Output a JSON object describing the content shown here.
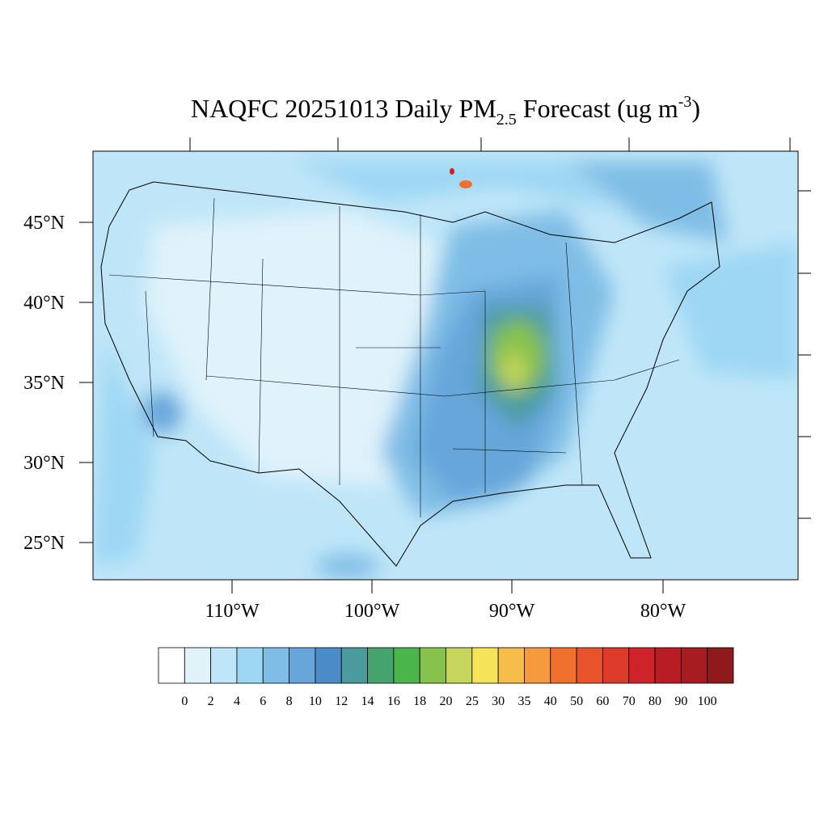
{
  "title": {
    "main": "NAQFC 20251013 Daily PM",
    "sub": "2.5",
    "middle": " Forecast (ug m",
    "sup": "-3",
    "end": ")"
  },
  "lat_labels": [
    "45°N",
    "40°N",
    "35°N",
    "30°N",
    "25°N"
  ],
  "lon_labels": [
    "110°W",
    "100°W",
    "90°W",
    "80°W"
  ],
  "colorbar": {
    "levels": [
      0,
      2,
      4,
      6,
      8,
      10,
      12,
      14,
      16,
      18,
      20,
      25,
      30,
      35,
      40,
      50,
      60,
      70,
      80,
      90,
      100
    ],
    "colors": [
      "#ffffff",
      "#e0f3fb",
      "#bfe6f8",
      "#9dd7f4",
      "#7fbde6",
      "#66a6da",
      "#4a8cc8",
      "#4a9b9e",
      "#45a46d",
      "#4bb44a",
      "#87c24c",
      "#c6d65a",
      "#f5e35a",
      "#f7bd4a",
      "#f59b3e",
      "#f0702d",
      "#e8532c",
      "#dd3a2a",
      "#d02229",
      "#b81d24",
      "#a71c21",
      "#8e1a1b"
    ]
  }
}
